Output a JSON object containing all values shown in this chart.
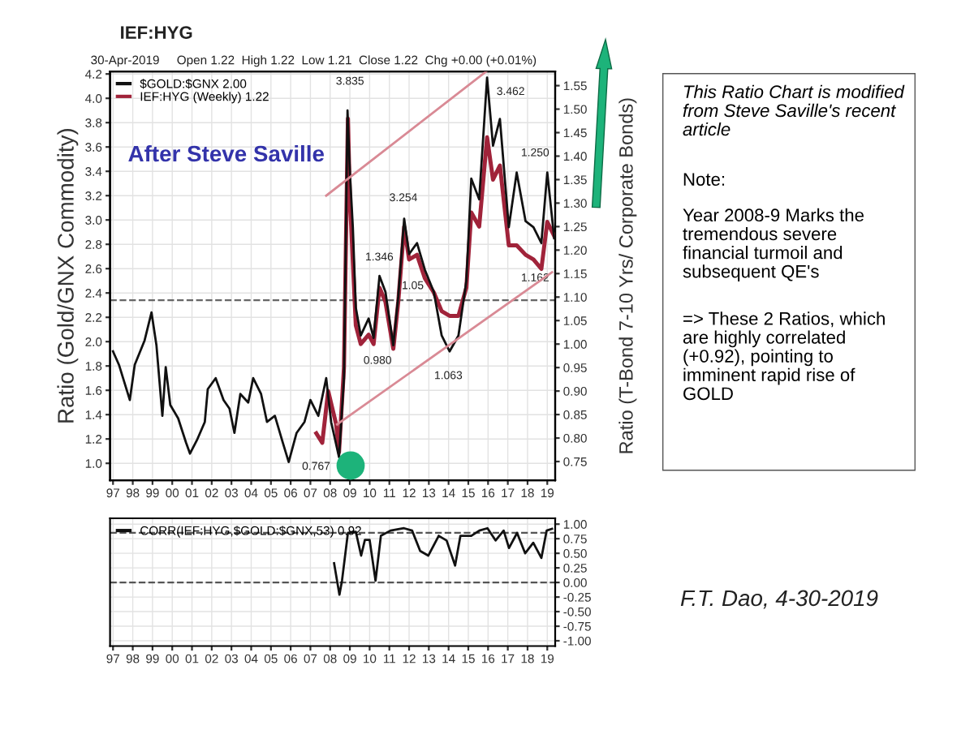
{
  "chart_data": [
    {
      "type": "line",
      "title": "IEF:HYG",
      "subtitle": "30-Apr-2019     Open 1.22  High 1.22  Low 1.21  Close 1.22  Chg +0.00 (+0.01%)",
      "ylabel": "Ratio (Gold/GNX Commodity)",
      "y2label": "Ratio (T-Bond 7-10 Yrs/ Corporate Bonds)",
      "xlim": [
        1996.85,
        2019.4
      ],
      "ylim": [
        0.86,
        4.22
      ],
      "y2lim": [
        0.71,
        1.58
      ],
      "xticks": [
        {
          "value": 1997,
          "label": "97"
        },
        {
          "value": 1998,
          "label": "98"
        },
        {
          "value": 1999,
          "label": "99"
        },
        {
          "value": 2000,
          "label": "00"
        },
        {
          "value": 2001,
          "label": "01"
        },
        {
          "value": 2002,
          "label": "02"
        },
        {
          "value": 2003,
          "label": "03"
        },
        {
          "value": 2004,
          "label": "04"
        },
        {
          "value": 2005,
          "label": "05"
        },
        {
          "value": 2006,
          "label": "06"
        },
        {
          "value": 2007,
          "label": "07"
        },
        {
          "value": 2008,
          "label": "08"
        },
        {
          "value": 2009,
          "label": "09"
        },
        {
          "value": 2010,
          "label": "10"
        },
        {
          "value": 2011,
          "label": "11"
        },
        {
          "value": 2012,
          "label": "12"
        },
        {
          "value": 2013,
          "label": "13"
        },
        {
          "value": 2014,
          "label": "14"
        },
        {
          "value": 2015,
          "label": "15"
        },
        {
          "value": 2016,
          "label": "16"
        },
        {
          "value": 2017,
          "label": "17"
        },
        {
          "value": 2018,
          "label": "18"
        },
        {
          "value": 2019,
          "label": "19"
        }
      ],
      "yticks": [
        {
          "value": 1.0,
          "label": "1.0"
        },
        1.2,
        1.4,
        1.6,
        1.8,
        {
          "value": 2.0,
          "label": "2.0"
        },
        2.2,
        2.4,
        2.6,
        2.8,
        {
          "value": 3.0,
          "label": "3.0"
        },
        3.2,
        3.4,
        3.6,
        3.8,
        {
          "value": 4.0,
          "label": "4.0"
        },
        4.2
      ],
      "y2ticks": [
        0.75,
        {
          "value": 0.8,
          "label": "0.80"
        },
        0.85,
        {
          "value": 0.9,
          "label": "0.90"
        },
        0.95,
        {
          "value": 1.0,
          "label": "1.00"
        },
        1.05,
        {
          "value": 1.1,
          "label": "1.10"
        },
        1.15,
        {
          "value": 1.2,
          "label": "1.20"
        },
        1.25,
        {
          "value": 1.3,
          "label": "1.30"
        },
        1.35,
        {
          "value": 1.4,
          "label": "1.40"
        },
        1.45,
        {
          "value": 1.5,
          "label": "1.50"
        },
        1.55
      ],
      "grid": true,
      "legend": "top left",
      "series": [
        {
          "name": "$GOLD:$GNX 2.00",
          "color": "#111111",
          "x": [
            1997.0,
            1997.3,
            1997.85,
            1998.1,
            1998.6,
            1998.95,
            1999.2,
            1999.5,
            1999.67,
            1999.9,
            2000.3,
            2000.7,
            2000.9,
            2001.25,
            2001.65,
            2001.8,
            2002.2,
            2002.6,
            2002.9,
            2003.15,
            2003.45,
            2003.85,
            2004.1,
            2004.5,
            2004.8,
            2005.2,
            2005.6,
            2005.9,
            2006.3,
            2006.7,
            2007.0,
            2007.4,
            2007.8,
            2008.05,
            2008.45,
            2008.7,
            2008.88,
            2009.0,
            2009.15,
            2009.3,
            2009.55,
            2009.95,
            2010.2,
            2010.5,
            2010.8,
            2011.2,
            2011.45,
            2011.75,
            2012.0,
            2012.4,
            2012.8,
            2013.25,
            2013.65,
            2014.05,
            2014.5,
            2014.9,
            2015.15,
            2015.55,
            2015.95,
            2016.25,
            2016.6,
            2017.05,
            2017.45,
            2017.9,
            2018.3,
            2018.7,
            2019.0,
            2019.35
          ],
          "values": [
            1.92,
            1.81,
            1.52,
            1.81,
            2.01,
            2.24,
            1.97,
            1.39,
            1.79,
            1.48,
            1.37,
            1.17,
            1.08,
            1.19,
            1.34,
            1.61,
            1.7,
            1.52,
            1.45,
            1.25,
            1.57,
            1.5,
            1.7,
            1.57,
            1.34,
            1.39,
            1.17,
            1.01,
            1.25,
            1.34,
            1.52,
            1.39,
            1.7,
            1.34,
            1.05,
            1.7,
            3.9,
            3.39,
            2.94,
            2.28,
            2.05,
            2.19,
            2.03,
            2.54,
            2.41,
            1.97,
            2.37,
            3.01,
            2.72,
            2.81,
            2.59,
            2.41,
            2.05,
            1.92,
            2.05,
            2.5,
            3.34,
            3.17,
            4.17,
            3.61,
            3.83,
            2.94,
            3.39,
            2.99,
            2.94,
            2.81,
            3.39,
            2.85
          ]
        },
        {
          "name": "IEF:HYG (Weekly) 1.22",
          "color": "#a0233a",
          "axis": "y2",
          "x": [
            2007.3,
            2007.6,
            2007.9,
            2008.3,
            2008.45,
            2008.7,
            2008.9,
            2009.0,
            2009.3,
            2009.55,
            2009.95,
            2010.2,
            2010.5,
            2010.8,
            2011.2,
            2011.45,
            2011.75,
            2012.0,
            2012.4,
            2012.8,
            2013.25,
            2013.65,
            2014.05,
            2014.5,
            2014.9,
            2015.15,
            2015.55,
            2015.95,
            2016.25,
            2016.6,
            2017.05,
            2017.45,
            2017.9,
            2018.3,
            2018.7,
            2019.0,
            2019.35
          ],
          "values": [
            0.81,
            0.79,
            0.9,
            0.83,
            0.77,
            0.95,
            1.48,
            1.31,
            1.04,
            1.0,
            1.02,
            1.0,
            1.12,
            1.09,
            0.99,
            1.09,
            1.25,
            1.18,
            1.19,
            1.14,
            1.11,
            1.07,
            1.06,
            1.06,
            1.12,
            1.28,
            1.25,
            1.44,
            1.35,
            1.38,
            1.21,
            1.21,
            1.19,
            1.18,
            1.16,
            1.26,
            1.23
          ]
        },
        {
          "color": "#d98a95",
          "x": [
            2007.8,
            2015.9
          ],
          "values": [
            3.2,
            4.22
          ]
        },
        {
          "color": "#d98a95",
          "x": [
            2008.35,
            2019.24
          ],
          "values": [
            1.32,
            2.57
          ]
        }
      ],
      "ref_lines": [
        {
          "axis": "y",
          "value": 2.34,
          "color": "#666666",
          "line_style": "dashed"
        }
      ],
      "annotations": [
        "3.835",
        "3.254",
        "1.346",
        "1.05",
        "0.980",
        "1.063",
        "3.462",
        "1.250",
        "1.162",
        "0.767",
        "After Steve Saville"
      ]
    },
    {
      "type": "line",
      "xlim": [
        1996.85,
        2019.4
      ],
      "ylim": [
        -1.09,
        1.1
      ],
      "xticks": [
        {
          "value": 1997,
          "label": "97"
        },
        {
          "value": 1998,
          "label": "98"
        },
        {
          "value": 1999,
          "label": "99"
        },
        {
          "value": 2000,
          "label": "00"
        },
        {
          "value": 2001,
          "label": "01"
        },
        {
          "value": 2002,
          "label": "02"
        },
        {
          "value": 2003,
          "label": "03"
        },
        {
          "value": 2004,
          "label": "04"
        },
        {
          "value": 2005,
          "label": "05"
        },
        {
          "value": 2006,
          "label": "06"
        },
        {
          "value": 2007,
          "label": "07"
        },
        {
          "value": 2008,
          "label": "08"
        },
        {
          "value": 2009,
          "label": "09"
        },
        {
          "value": 2010,
          "label": "10"
        },
        {
          "value": 2011,
          "label": "11"
        },
        {
          "value": 2012,
          "label": "12"
        },
        {
          "value": 2013,
          "label": "13"
        },
        {
          "value": 2014,
          "label": "14"
        },
        {
          "value": 2015,
          "label": "15"
        },
        {
          "value": 2016,
          "label": "16"
        },
        {
          "value": 2017,
          "label": "17"
        },
        {
          "value": 2018,
          "label": "18"
        },
        {
          "value": 2019,
          "label": "19"
        }
      ],
      "yticks": [
        {
          "value": 1.0,
          "label": "1.00"
        },
        0.75,
        {
          "value": 0.5,
          "label": "0.50"
        },
        0.25,
        {
          "value": 0.0,
          "label": "0.00"
        },
        -0.25,
        {
          "value": -0.5,
          "label": "-0.50"
        },
        -0.75,
        {
          "value": -1.0,
          "label": "-1.00"
        }
      ],
      "grid": true,
      "legend": "top left",
      "series": [
        {
          "name": "CORR(IEF:HYG,$GOLD:$GNX,53) 0.92",
          "color": "#111111",
          "x": [
            2008.2,
            2008.47,
            2008.6,
            2008.9,
            2009.3,
            2009.57,
            2009.76,
            2010.0,
            2010.3,
            2010.57,
            2011.06,
            2011.74,
            2012.15,
            2012.56,
            2012.97,
            2013.5,
            2013.9,
            2014.33,
            2014.6,
            2015.15,
            2015.56,
            2015.97,
            2016.38,
            2016.79,
            2017.06,
            2017.47,
            2017.88,
            2018.29,
            2018.7,
            2018.97,
            2019.24
          ],
          "values": [
            0.33,
            -0.21,
            0.03,
            0.85,
            0.87,
            0.46,
            0.73,
            0.73,
            0.03,
            0.8,
            0.89,
            0.93,
            0.89,
            0.54,
            0.46,
            0.8,
            0.72,
            0.29,
            0.8,
            0.8,
            0.89,
            0.93,
            0.72,
            0.89,
            0.59,
            0.85,
            0.5,
            0.68,
            0.42,
            0.89,
            0.92
          ]
        }
      ],
      "ref_lines": [
        {
          "axis": "y",
          "value": 0.85,
          "color": "#555555",
          "line_style": "dashed"
        },
        {
          "axis": "y",
          "value": 0.0,
          "color": "#555555",
          "line_style": "dashed"
        }
      ]
    },
    {
      "type": "other",
      "title": "This Ratio Chart is modified from Steve Saville's recent article",
      "annotations": [
        "Note:",
        "Year 2008-9 Marks the tremendous severe financial turmoil and subsequent QE's",
        "=> These 2 Ratios, which are highly correlated (+0.92), pointing to imminent rapid rise of GOLD",
        "F.T. Dao, 4-30-2019"
      ]
    }
  ]
}
